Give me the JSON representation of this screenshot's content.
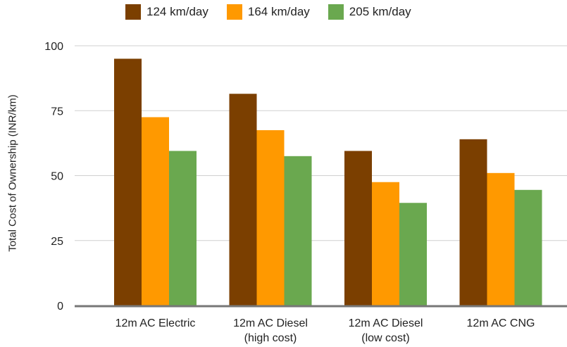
{
  "chart_data": {
    "type": "bar",
    "title": "",
    "xlabel": "",
    "ylabel": "Total Cost of Ownership (INR/km)",
    "ylim": [
      0,
      100
    ],
    "yticks": [
      "0",
      "25",
      "50",
      "75",
      "100"
    ],
    "grid": true,
    "legend_position": "top",
    "categories": [
      [
        "12m AC Electric"
      ],
      [
        "12m AC Diesel",
        "(high cost)"
      ],
      [
        "12m AC Diesel",
        "(low cost)"
      ],
      [
        "12m AC CNG"
      ]
    ],
    "series": [
      {
        "name": "124 km/day",
        "color": "#7B3F00",
        "values": [
          95,
          81.5,
          59.5,
          64
        ]
      },
      {
        "name": "164 km/day",
        "color": "#FF9900",
        "values": [
          72.5,
          67.5,
          47.5,
          51
        ]
      },
      {
        "name": "205 km/day",
        "color": "#6AA84F",
        "values": [
          59.5,
          57.5,
          39.5,
          44.5
        ]
      }
    ]
  }
}
